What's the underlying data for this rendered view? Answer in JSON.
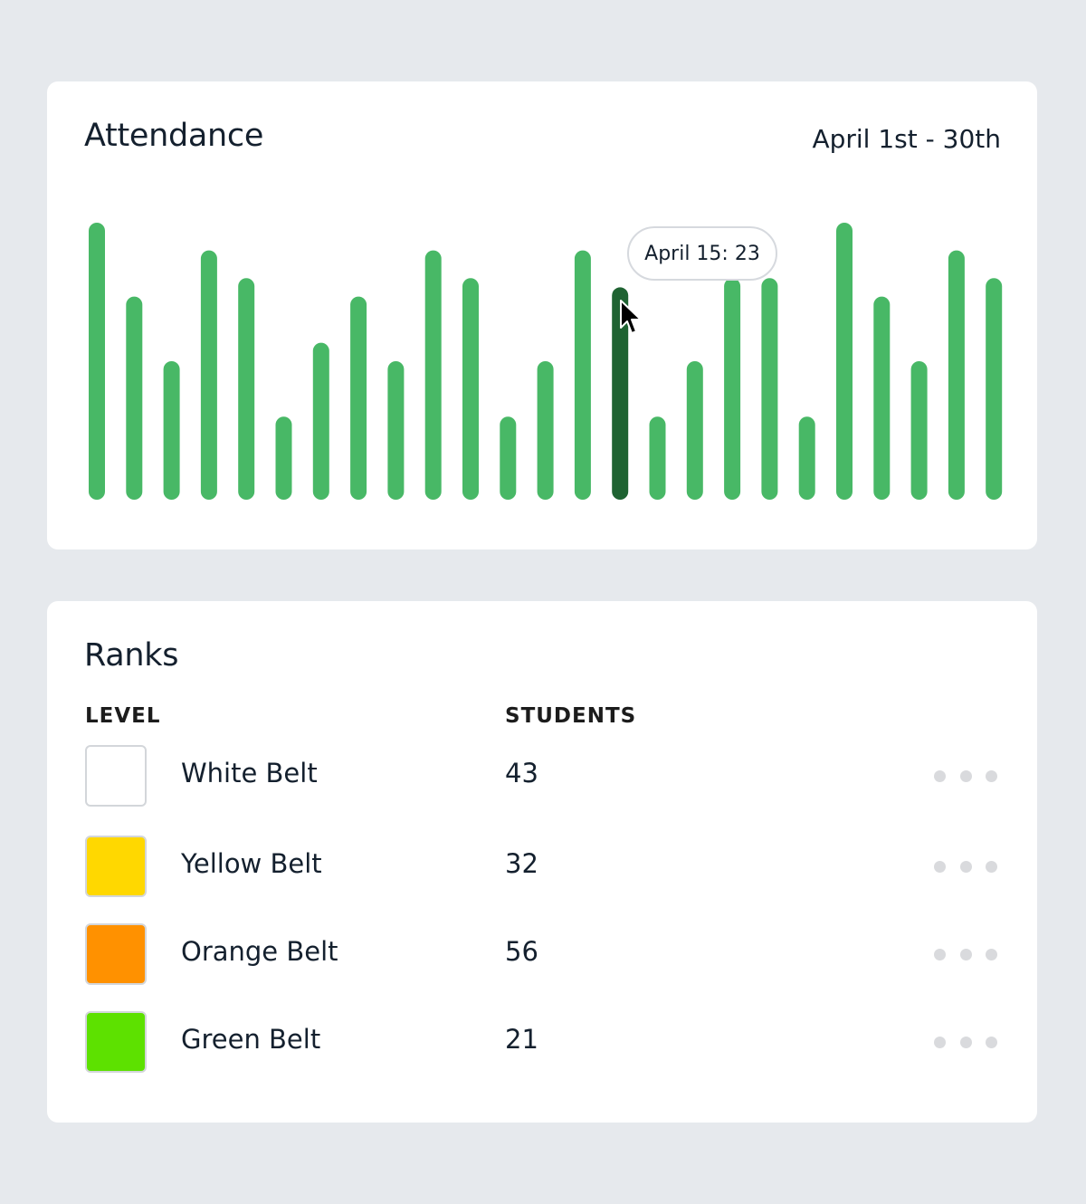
{
  "attendance": {
    "title": "Attendance",
    "date_range": "April 1st - 30th",
    "tooltip": "April 15: 23",
    "highlight_index": 14,
    "colors": {
      "bar": "#48b866",
      "bar_highlight": "#1f6332"
    }
  },
  "chart_data": {
    "type": "bar",
    "title": "",
    "values": [
      30,
      22,
      15,
      27,
      24,
      9,
      17,
      22,
      15,
      27,
      24,
      9,
      15,
      27,
      23,
      9,
      15,
      24,
      24,
      9,
      30,
      22,
      15,
      27,
      24
    ],
    "ylim": [
      0,
      30
    ],
    "grid": false,
    "highlighted": {
      "label": "April 15",
      "value": 23
    }
  },
  "ranks": {
    "title": "Ranks",
    "columns": {
      "level": "LEVEL",
      "students": "STUDENTS"
    },
    "rows": [
      {
        "name": "White Belt",
        "students": "43",
        "color": "#ffffff"
      },
      {
        "name": "Yellow Belt",
        "students": "32",
        "color": "#ffd800"
      },
      {
        "name": "Orange Belt",
        "students": "56",
        "color": "#ff9100"
      },
      {
        "name": "Green Belt",
        "students": "21",
        "color": "#5de100"
      }
    ],
    "row_menu_icon": "more-horizontal-icon"
  }
}
